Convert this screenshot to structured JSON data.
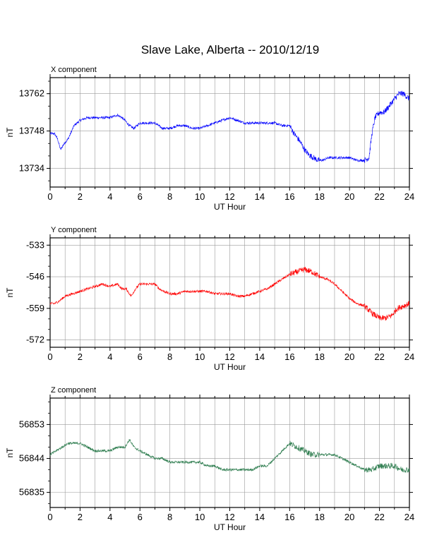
{
  "title": "Slave Lake, Alberta -- 2010/12/19",
  "chart_data": [
    {
      "type": "line",
      "title": "X component",
      "xlabel": "UT Hour",
      "ylabel": "nT",
      "xlim": [
        0,
        24
      ],
      "ylim": [
        13727,
        13768
      ],
      "xticks": [
        "0",
        "2",
        "4",
        "6",
        "8",
        "10",
        "12",
        "14",
        "16",
        "18",
        "20",
        "22",
        "24"
      ],
      "yticks": [
        "13734",
        "13748",
        "13762"
      ],
      "grid": true,
      "color": "#0000ff",
      "series": [
        {
          "x": [
            0,
            0.3,
            0.5,
            0.7,
            0.9,
            1.2,
            1.6,
            2,
            2.5,
            3,
            3.5,
            4,
            4.5,
            4.8,
            5,
            5.3,
            5.6,
            6,
            6.5,
            7,
            7.5,
            8,
            8.5,
            9,
            9.5,
            10,
            10.5,
            11,
            11.5,
            12,
            12.5,
            13,
            13.5,
            14,
            14.5,
            15,
            15.5,
            16,
            16.3,
            16.7,
            17,
            17.3,
            17.6,
            17.9,
            18.2,
            18.6,
            19,
            19.5,
            20,
            20.5,
            21,
            21.3,
            21.5,
            21.7,
            22,
            22.3,
            22.6,
            23,
            23.3,
            23.6,
            24
          ],
          "values": [
            13747,
            13747,
            13745,
            13741,
            13743,
            13745,
            13750,
            13752,
            13753,
            13753,
            13753,
            13753,
            13754,
            13753,
            13752,
            13750,
            13749,
            13751,
            13751,
            13751,
            13749,
            13749,
            13750,
            13750,
            13749,
            13749,
            13750,
            13751,
            13752,
            13753,
            13752,
            13751,
            13751,
            13751,
            13751,
            13751,
            13750,
            13750,
            13747,
            13744,
            13741,
            13739,
            13738,
            13737,
            13737,
            13738,
            13738,
            13738,
            13738,
            13737,
            13737,
            13738,
            13747,
            13753,
            13755,
            13755,
            13757,
            13760,
            13762,
            13762,
            13760
          ]
        }
      ]
    },
    {
      "type": "line",
      "title": "Y component",
      "xlabel": "UT Hour",
      "ylabel": "nT",
      "xlim": [
        0,
        24
      ],
      "ylim": [
        -575,
        -530
      ],
      "xticks": [
        "0",
        "2",
        "4",
        "6",
        "8",
        "10",
        "12",
        "14",
        "16",
        "18",
        "20",
        "22",
        "24"
      ],
      "yticks": [
        "-533",
        "-546",
        "-559",
        "-572"
      ],
      "grid": true,
      "color": "#ff0000",
      "series": [
        {
          "x": [
            0,
            0.3,
            0.6,
            1,
            1.5,
            2,
            2.5,
            3,
            3.5,
            4,
            4.5,
            4.8,
            5.1,
            5.4,
            5.7,
            6,
            6.5,
            7,
            7.3,
            7.6,
            8,
            8.5,
            9,
            9.5,
            10,
            10.5,
            11,
            11.5,
            12,
            12.5,
            13,
            13.5,
            14,
            14.5,
            15,
            15.5,
            16,
            16.5,
            17,
            17.5,
            18,
            18.5,
            19,
            19.5,
            20,
            20.5,
            21,
            21.5,
            22,
            22.4,
            22.8,
            23.2,
            23.6,
            24
          ],
          "values": [
            -557,
            -557,
            -556,
            -554,
            -553,
            -552,
            -551,
            -550,
            -549,
            -550,
            -549,
            -551,
            -551,
            -554,
            -551,
            -549,
            -549,
            -549,
            -551,
            -552,
            -553,
            -553,
            -552,
            -552,
            -552,
            -552,
            -553,
            -553,
            -553,
            -554,
            -554,
            -553,
            -552,
            -551,
            -549,
            -547,
            -545,
            -544,
            -543,
            -544,
            -546,
            -547,
            -549,
            -552,
            -555,
            -557,
            -558,
            -561,
            -563,
            -563,
            -562,
            -559,
            -558,
            -557
          ]
        }
      ]
    },
    {
      "type": "line",
      "title": "Z component",
      "xlabel": "UT Hour",
      "ylabel": "nT",
      "xlim": [
        0,
        24
      ],
      "ylim": [
        56831,
        56860
      ],
      "xticks": [
        "0",
        "2",
        "4",
        "6",
        "8",
        "10",
        "12",
        "14",
        "16",
        "18",
        "20",
        "22",
        "24"
      ],
      "yticks": [
        "56835",
        "56844",
        "56853"
      ],
      "grid": true,
      "color": "#2e7d4f",
      "series": [
        {
          "x": [
            0,
            0.4,
            0.8,
            1.2,
            1.6,
            2,
            2.5,
            3,
            3.5,
            4,
            4.5,
            5,
            5.3,
            5.6,
            6,
            6.5,
            7,
            7.5,
            8,
            8.5,
            9,
            9.5,
            10,
            10.5,
            11,
            11.5,
            12,
            12.5,
            13,
            13.5,
            14,
            14.5,
            15,
            15.5,
            16,
            16.5,
            17,
            17.5,
            18,
            18.5,
            19,
            19.5,
            20,
            20.5,
            21,
            21.5,
            22,
            22.5,
            23,
            23.5,
            24
          ],
          "values": [
            56845,
            56846,
            56847,
            56848,
            56848,
            56848,
            56847,
            56846,
            56846,
            56846,
            56847,
            56847,
            56849,
            56847,
            56846,
            56845,
            56844,
            56844,
            56843,
            56843,
            56843,
            56843,
            56843,
            56842,
            56842,
            56841,
            56841,
            56841,
            56841,
            56841,
            56842,
            56842,
            56844,
            56846,
            56848,
            56847,
            56846,
            56845,
            56845,
            56845,
            56845,
            56844,
            56843,
            56842,
            56841,
            56841,
            56842,
            56842,
            56842,
            56841,
            56841
          ]
        }
      ]
    }
  ]
}
